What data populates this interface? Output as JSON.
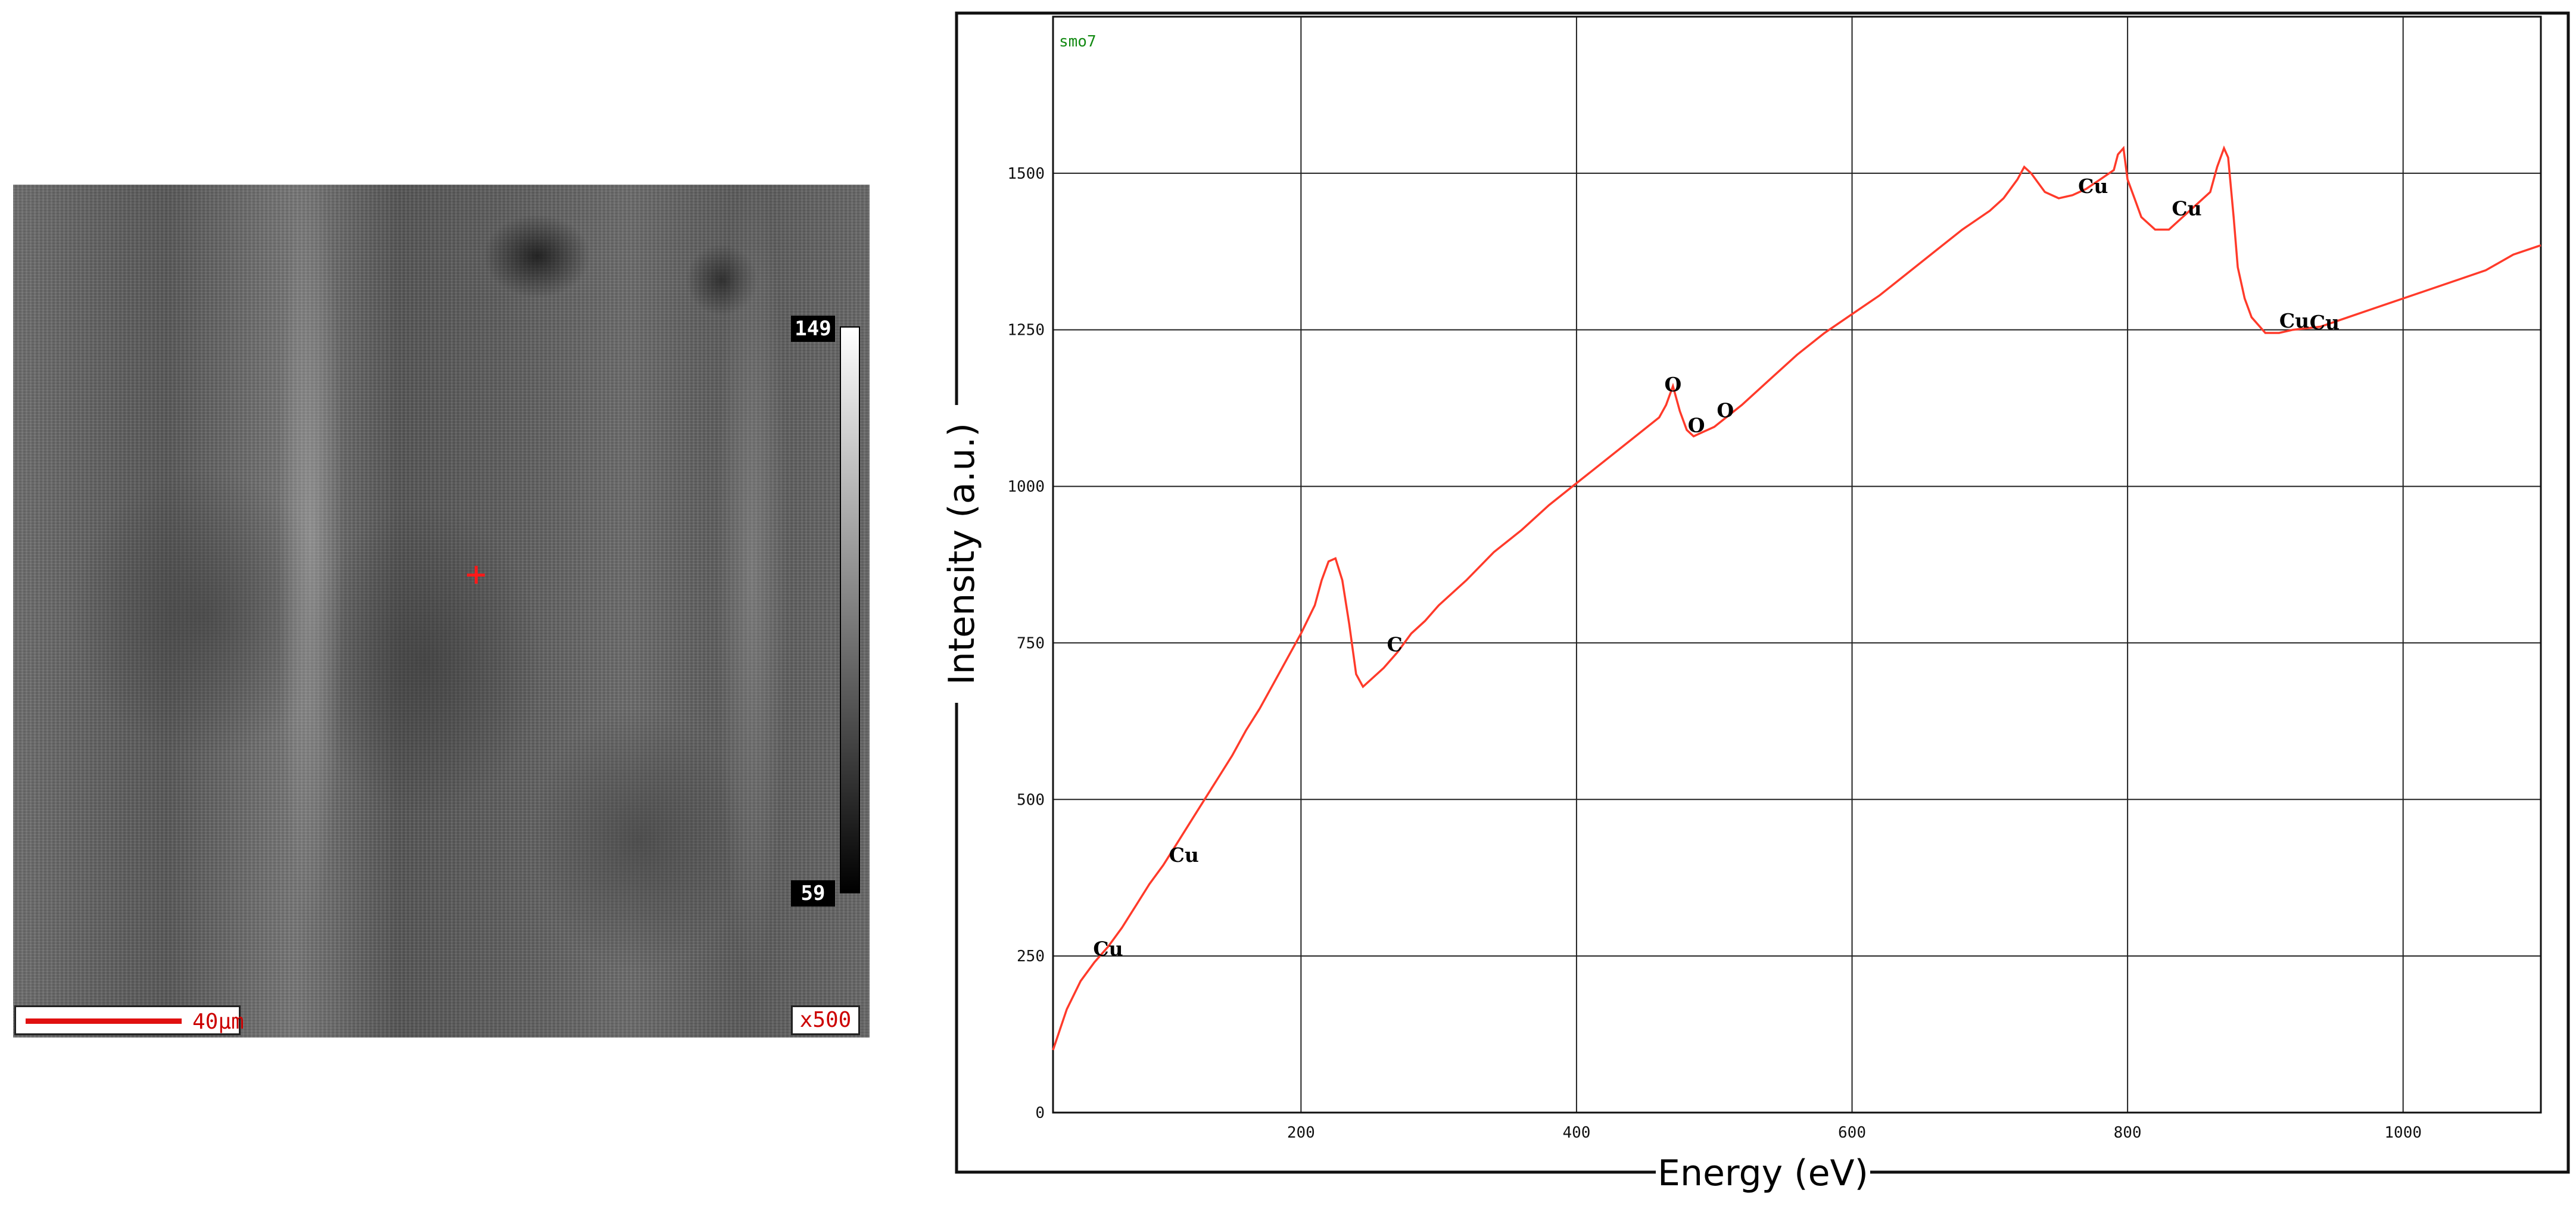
{
  "micrograph": {
    "colorbar_max": "149",
    "colorbar_min": "59",
    "scale_bar_label": "40µm",
    "magnification": "x500",
    "marker_color": "#ff1a1a"
  },
  "chart_data": {
    "type": "line",
    "spectrum_label": "smo7",
    "xlabel": "Energy (eV)",
    "ylabel": "Intensity (a.u.)",
    "xlim": [
      20,
      1100
    ],
    "ylim": [
      0,
      1750
    ],
    "x_ticks": [
      200,
      400,
      600,
      800,
      1000
    ],
    "y_ticks": [
      0,
      250,
      500,
      750,
      1000,
      1250,
      1500
    ],
    "grid": true,
    "line_color": "#ff3a2a",
    "series": [
      {
        "x": [
          20,
          30,
          40,
          50,
          60,
          70,
          80,
          90,
          100,
          110,
          120,
          130,
          140,
          150,
          160,
          170,
          180,
          190,
          200,
          210,
          215,
          220,
          225,
          230,
          235,
          240,
          245,
          250,
          260,
          270,
          280,
          290,
          300,
          320,
          340,
          360,
          380,
          400,
          420,
          440,
          460,
          465,
          470,
          475,
          480,
          485,
          490,
          500,
          520,
          540,
          560,
          580,
          600,
          620,
          640,
          660,
          680,
          700,
          710,
          720,
          725,
          730,
          740,
          750,
          760,
          770,
          780,
          790,
          793,
          797,
          800,
          805,
          810,
          820,
          830,
          840,
          850,
          860,
          865,
          870,
          873,
          877,
          880,
          885,
          890,
          900,
          910,
          920,
          940,
          960,
          980,
          1000,
          1020,
          1040,
          1060,
          1080,
          1100
        ],
        "y": [
          100,
          165,
          210,
          240,
          265,
          295,
          330,
          365,
          395,
          430,
          465,
          500,
          535,
          570,
          610,
          645,
          685,
          725,
          765,
          810,
          850,
          880,
          885,
          850,
          780,
          700,
          680,
          690,
          710,
          735,
          765,
          785,
          810,
          850,
          895,
          930,
          970,
          1005,
          1040,
          1075,
          1110,
          1130,
          1160,
          1120,
          1090,
          1080,
          1085,
          1095,
          1130,
          1170,
          1210,
          1245,
          1275,
          1305,
          1340,
          1375,
          1410,
          1440,
          1460,
          1490,
          1510,
          1500,
          1470,
          1460,
          1465,
          1475,
          1490,
          1505,
          1530,
          1540,
          1490,
          1460,
          1430,
          1410,
          1410,
          1430,
          1450,
          1470,
          1510,
          1540,
          1525,
          1430,
          1350,
          1300,
          1270,
          1245,
          1245,
          1250,
          1255,
          1270,
          1285,
          1300,
          1315,
          1330,
          1345,
          1370,
          1385
        ]
      }
    ],
    "peak_labels": [
      {
        "text": "Cu",
        "x": 60,
        "y": 262
      },
      {
        "text": "Cu",
        "x": 115,
        "y": 412
      },
      {
        "text": "C",
        "x": 268,
        "y": 748
      },
      {
        "text": "O",
        "x": 470,
        "y": 1163
      },
      {
        "text": "O",
        "x": 487,
        "y": 1098
      },
      {
        "text": "O",
        "x": 508,
        "y": 1122
      },
      {
        "text": "Cu",
        "x": 775,
        "y": 1480
      },
      {
        "text": "Cu",
        "x": 843,
        "y": 1444
      },
      {
        "text": "Cu",
        "x": 921,
        "y": 1265
      },
      {
        "text": "Cu",
        "x": 943,
        "y": 1262
      }
    ]
  }
}
